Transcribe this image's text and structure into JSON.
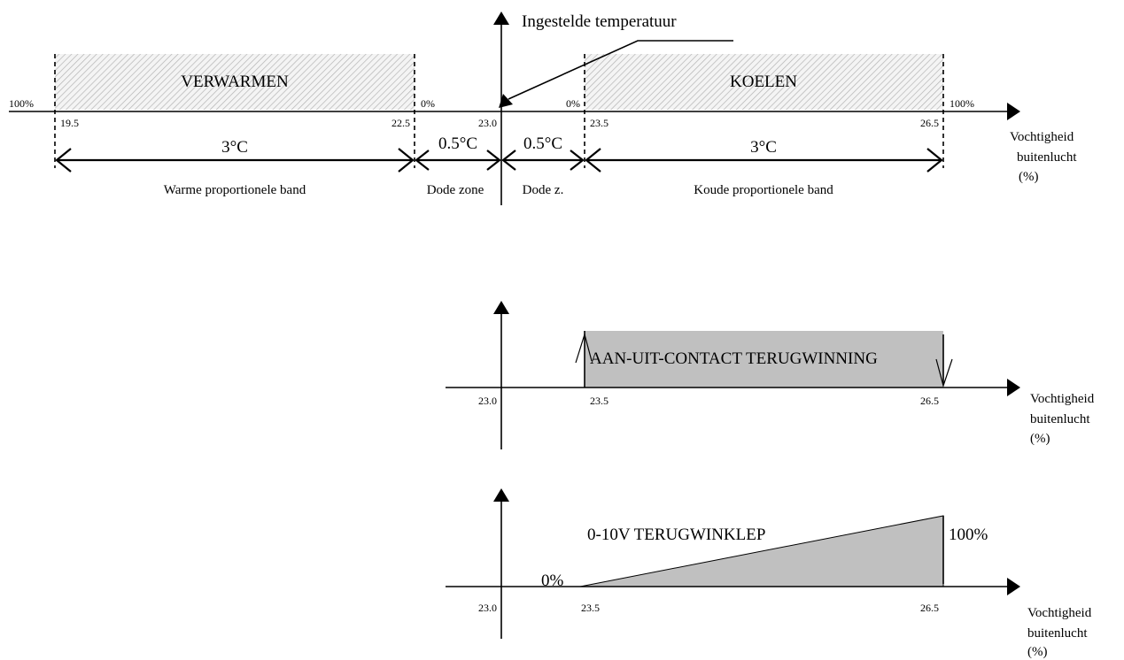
{
  "top": {
    "setpoint_label": "Ingestelde temperatuur",
    "heating_label": "VERWARMEN",
    "cooling_label": "KOELEN",
    "pct_left": "100%",
    "pct_heat_end": "0%",
    "pct_cool_start": "0%",
    "pct_right": "100%",
    "ticks": [
      "19.5",
      "22.5",
      "23.0",
      "23.5",
      "26.5"
    ],
    "spans": [
      "3°C",
      "0.5°C",
      "0.5°C",
      "3°C"
    ],
    "bands": [
      "Warme proportionele band",
      "Dode zone",
      "Dode z.",
      "Koude proportionele band"
    ],
    "axis_title": [
      "Vochtigheid",
      "buitenlucht",
      "(%)"
    ]
  },
  "middle": {
    "title": "AAN-UIT-CONTACT TERUGWINNING",
    "ticks": [
      "23.0",
      "23.5",
      "26.5"
    ],
    "axis_title": [
      "Vochtigheid",
      "buitenlucht",
      "(%)"
    ]
  },
  "bottom": {
    "title": "0-10V TERUGWINKLEP",
    "min_label": "0%",
    "max_label": "100%",
    "ticks": [
      "23.0",
      "23.5",
      "26.5"
    ],
    "axis_title": [
      "Vochtigheid",
      "buitenlucht",
      "(%)"
    ]
  },
  "colors": {
    "hatch": "#c8c8c8",
    "fill_gray": "#c0c0c0",
    "line": "#000000"
  }
}
